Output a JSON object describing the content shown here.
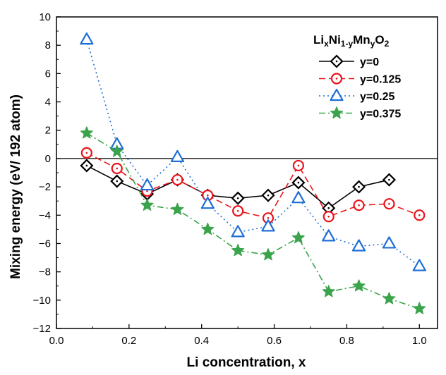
{
  "chart_data": {
    "type": "line",
    "xlabel": "Li concentration, x",
    "ylabel": "Mixing energy (eV/ 192 atom)",
    "xlim": [
      0.0,
      1.05
    ],
    "ylim": [
      -12,
      10
    ],
    "xticks": [
      "0.0",
      "0.2",
      "0.4",
      "0.6",
      "0.8",
      "1.0"
    ],
    "yticks": [
      "−12",
      "−10",
      "−8",
      "−6",
      "−4",
      "−2",
      "0",
      "2",
      "4",
      "6",
      "8",
      "10"
    ],
    "grid": false,
    "reference_line_y": 0,
    "legend": {
      "placement": "top-right",
      "title_parts": [
        "Li",
        "x",
        "Ni",
        "1-y",
        "Mn",
        "y",
        "O",
        "2"
      ]
    },
    "series": [
      {
        "name": "y=0",
        "color": "#000000",
        "line_style": "solid",
        "marker": "diamond",
        "x": [
          0.0833,
          0.1667,
          0.25,
          0.3333,
          0.4167,
          0.5,
          0.5833,
          0.6667,
          0.75,
          0.8333,
          0.9167
        ],
        "y": [
          -0.5,
          -1.6,
          -2.5,
          -1.5,
          -2.6,
          -2.8,
          -2.6,
          -1.7,
          -3.5,
          -2.0,
          -1.5
        ]
      },
      {
        "name": "y=0.125",
        "color": "#e8141b",
        "line_style": "dashed",
        "marker": "circle",
        "x": [
          0.0833,
          0.1667,
          0.25,
          0.3333,
          0.4167,
          0.5,
          0.5833,
          0.6667,
          0.75,
          0.8333,
          0.9167,
          1.0
        ],
        "y": [
          0.4,
          -0.7,
          -2.3,
          -1.5,
          -2.6,
          -3.7,
          -4.2,
          -0.5,
          -4.1,
          -3.3,
          -3.2,
          -4.0
        ]
      },
      {
        "name": "y=0.25",
        "color": "#1f6fd6",
        "line_style": "dotted",
        "marker": "triangle",
        "x": [
          0.0833,
          0.1667,
          0.25,
          0.3333,
          0.4167,
          0.5,
          0.5833,
          0.6667,
          0.75,
          0.8333,
          0.9167,
          1.0
        ],
        "y": [
          8.4,
          1.0,
          -1.9,
          0.1,
          -3.2,
          -5.2,
          -4.8,
          -2.8,
          -5.5,
          -6.2,
          -6.0,
          -7.6
        ]
      },
      {
        "name": "y=0.375",
        "color": "#3aa34b",
        "line_style": "dashdot",
        "marker": "star",
        "x": [
          0.0833,
          0.1667,
          0.25,
          0.3333,
          0.4167,
          0.5,
          0.5833,
          0.6667,
          0.75,
          0.8333,
          0.9167,
          1.0
        ],
        "y": [
          1.8,
          0.5,
          -3.3,
          -3.6,
          -5.0,
          -6.5,
          -6.8,
          -5.6,
          -9.4,
          -9.0,
          -9.9,
          -10.6
        ]
      }
    ]
  }
}
